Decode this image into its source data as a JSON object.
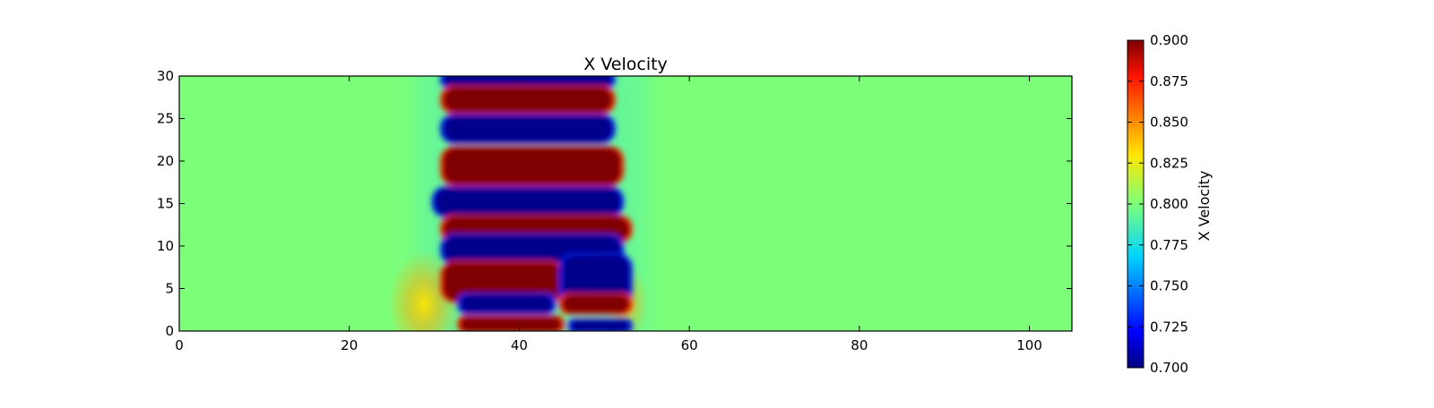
{
  "chart_data": {
    "type": "heatmap",
    "title": "X Velocity",
    "xlabel": "",
    "ylabel": "",
    "xlim": [
      0,
      105
    ],
    "ylim": [
      0,
      30
    ],
    "x_ticks": [
      0,
      20,
      40,
      60,
      80,
      100
    ],
    "y_ticks": [
      0,
      5,
      10,
      15,
      20,
      25,
      30
    ],
    "grid": false,
    "colormap": "jet",
    "colorbar": {
      "label": "X Velocity",
      "range": [
        0.7,
        0.9
      ],
      "ticks": [
        "0.700",
        "0.725",
        "0.750",
        "0.775",
        "0.800",
        "0.825",
        "0.850",
        "0.875",
        "0.900"
      ]
    },
    "background_value": 0.8,
    "field_features": [
      {
        "kind": "low",
        "x_start": 31,
        "x_end": 51,
        "y_center": 29.6,
        "height": 1.6
      },
      {
        "kind": "high",
        "x_start": 31,
        "x_end": 51,
        "y_center": 27.2,
        "height": 3.0
      },
      {
        "kind": "low",
        "x_start": 31,
        "x_end": 51,
        "y_center": 23.8,
        "height": 3.2
      },
      {
        "kind": "high",
        "x_start": 31,
        "x_end": 52,
        "y_center": 19.4,
        "height": 4.4
      },
      {
        "kind": "low",
        "x_start": 30,
        "x_end": 52,
        "y_center": 15.2,
        "height": 3.4
      },
      {
        "kind": "high",
        "x_start": 31,
        "x_end": 53,
        "y_center": 12.0,
        "height": 3.0
      },
      {
        "kind": "low",
        "x_start": 31,
        "x_end": 52,
        "y_center": 9.6,
        "height": 3.4
      },
      {
        "kind": "high",
        "x_start": 31,
        "x_end": 45,
        "y_center": 5.8,
        "height": 4.6
      },
      {
        "kind": "low",
        "x_start": 45,
        "x_end": 53,
        "y_center": 6.0,
        "height": 6.0
      },
      {
        "kind": "low",
        "x_start": 33,
        "x_end": 44,
        "y_center": 3.2,
        "height": 2.2
      },
      {
        "kind": "high",
        "x_start": 45,
        "x_end": 53,
        "y_center": 3.2,
        "height": 2.2
      },
      {
        "kind": "high",
        "x_start": 33,
        "x_end": 45,
        "y_center": 0.8,
        "height": 1.8
      },
      {
        "kind": "low",
        "x_start": 46,
        "x_end": 53,
        "y_center": 0.6,
        "height": 1.4
      }
    ]
  }
}
